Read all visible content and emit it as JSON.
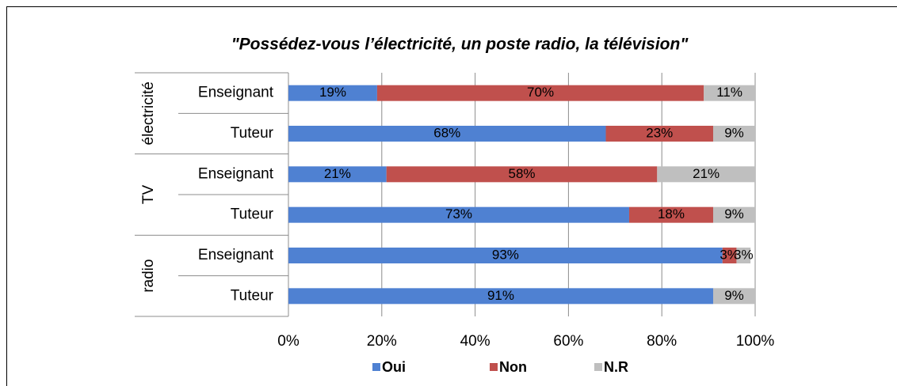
{
  "chart_data": {
    "type": "stacked_barh",
    "title": "\"Possédez-vous l’électricité, un poste radio, la télévision\"",
    "groups": [
      "électricité",
      "TV",
      "radio"
    ],
    "categories": [
      "Enseignant",
      "Tuteur",
      "Enseignant",
      "Tuteur",
      "Enseignant",
      "Tuteur"
    ],
    "series": [
      {
        "name": "Oui",
        "color": "#4f81d2",
        "values": [
          19,
          68,
          21,
          73,
          93,
          91
        ],
        "value_labels": [
          "19%",
          "68%",
          "21%",
          "73%",
          "93%",
          "91%"
        ]
      },
      {
        "name": "Non",
        "color": "#c0504d",
        "values": [
          70,
          23,
          58,
          18,
          3,
          null
        ],
        "value_labels": [
          "70%",
          "23%",
          "58%",
          "18%",
          "3%",
          null
        ]
      },
      {
        "name": "N.R",
        "color": "#bfbfbf",
        "values": [
          11,
          9,
          21,
          9,
          3,
          9
        ],
        "value_labels": [
          "11%",
          "9%",
          "21%",
          "9%",
          "3%",
          "9%"
        ]
      }
    ],
    "xlim": [
      0,
      100
    ],
    "xticks": [
      {
        "value": 0,
        "label": "0%"
      },
      {
        "value": 20,
        "label": "20%"
      },
      {
        "value": 40,
        "label": "40%"
      },
      {
        "value": 60,
        "label": "60%"
      },
      {
        "value": 80,
        "label": "80%"
      },
      {
        "value": 100,
        "label": "100%"
      }
    ],
    "grid": true,
    "legend": "bottom"
  }
}
